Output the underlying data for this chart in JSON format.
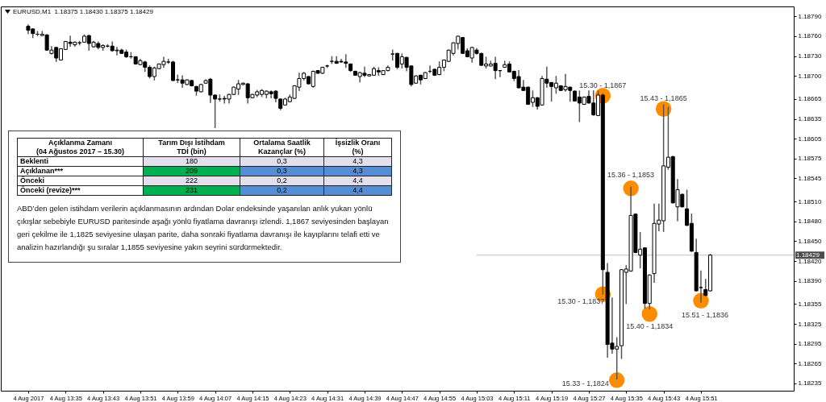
{
  "chart_data": {
    "type": "candlestick",
    "title": "EURUSD,M1  1.18375 1.18430 1.18375 1.18429",
    "x": [
      "2017-08-04T13:27",
      "2017-08-04T13:28",
      "2017-08-04T13:29",
      "2017-08-04T13:30",
      "2017-08-04T13:31",
      "2017-08-04T13:32",
      "2017-08-04T13:33",
      "2017-08-04T13:34",
      "2017-08-04T13:35",
      "2017-08-04T13:36",
      "2017-08-04T13:37",
      "2017-08-04T13:38",
      "2017-08-04T13:39",
      "2017-08-04T13:40",
      "2017-08-04T13:41",
      "2017-08-04T13:42",
      "2017-08-04T13:43",
      "2017-08-04T13:44",
      "2017-08-04T13:45",
      "2017-08-04T13:46",
      "2017-08-04T13:47",
      "2017-08-04T13:48",
      "2017-08-04T13:49",
      "2017-08-04T13:50",
      "2017-08-04T13:51",
      "2017-08-04T13:52",
      "2017-08-04T13:53",
      "2017-08-04T13:54",
      "2017-08-04T13:55",
      "2017-08-04T13:56",
      "2017-08-04T13:57",
      "2017-08-04T13:58",
      "2017-08-04T13:59",
      "2017-08-04T14:00",
      "2017-08-04T14:01",
      "2017-08-04T14:02",
      "2017-08-04T14:03",
      "2017-08-04T14:04",
      "2017-08-04T14:05",
      "2017-08-04T14:06",
      "2017-08-04T14:07",
      "2017-08-04T14:08",
      "2017-08-04T14:09",
      "2017-08-04T14:10",
      "2017-08-04T14:11",
      "2017-08-04T14:12",
      "2017-08-04T14:13",
      "2017-08-04T14:14",
      "2017-08-04T14:15",
      "2017-08-04T14:16",
      "2017-08-04T14:17",
      "2017-08-04T14:18",
      "2017-08-04T14:19",
      "2017-08-04T14:20",
      "2017-08-04T14:21",
      "2017-08-04T14:22",
      "2017-08-04T14:23",
      "2017-08-04T14:24",
      "2017-08-04T14:25",
      "2017-08-04T14:26",
      "2017-08-04T14:27",
      "2017-08-04T14:28",
      "2017-08-04T14:29",
      "2017-08-04T14:30",
      "2017-08-04T14:31",
      "2017-08-04T14:32",
      "2017-08-04T14:33",
      "2017-08-04T14:34",
      "2017-08-04T14:35",
      "2017-08-04T14:36",
      "2017-08-04T14:37",
      "2017-08-04T14:38",
      "2017-08-04T14:39",
      "2017-08-04T14:40",
      "2017-08-04T14:41",
      "2017-08-04T14:42",
      "2017-08-04T14:43",
      "2017-08-04T14:44",
      "2017-08-04T14:45",
      "2017-08-04T14:46",
      "2017-08-04T14:47",
      "2017-08-04T14:48",
      "2017-08-04T14:49",
      "2017-08-04T14:50",
      "2017-08-04T14:51",
      "2017-08-04T14:52",
      "2017-08-04T14:53",
      "2017-08-04T14:54",
      "2017-08-04T14:55",
      "2017-08-04T14:56",
      "2017-08-04T14:57",
      "2017-08-04T14:58",
      "2017-08-04T14:59",
      "2017-08-04T15:00",
      "2017-08-04T15:01",
      "2017-08-04T15:02",
      "2017-08-04T15:03",
      "2017-08-04T15:04",
      "2017-08-04T15:05",
      "2017-08-04T15:06",
      "2017-08-04T15:07",
      "2017-08-04T15:08",
      "2017-08-04T15:09",
      "2017-08-04T15:10",
      "2017-08-04T15:11",
      "2017-08-04T15:12",
      "2017-08-04T15:13",
      "2017-08-04T15:14",
      "2017-08-04T15:15",
      "2017-08-04T15:16",
      "2017-08-04T15:17",
      "2017-08-04T15:18",
      "2017-08-04T15:19",
      "2017-08-04T15:20",
      "2017-08-04T15:21",
      "2017-08-04T15:22",
      "2017-08-04T15:23",
      "2017-08-04T15:24",
      "2017-08-04T15:25",
      "2017-08-04T15:26",
      "2017-08-04T15:27",
      "2017-08-04T15:28",
      "2017-08-04T15:29",
      "2017-08-04T15:30",
      "2017-08-04T15:31",
      "2017-08-04T15:32",
      "2017-08-04T15:33",
      "2017-08-04T15:34",
      "2017-08-04T15:35",
      "2017-08-04T15:36",
      "2017-08-04T15:37",
      "2017-08-04T15:38",
      "2017-08-04T15:39",
      "2017-08-04T15:40",
      "2017-08-04T15:41",
      "2017-08-04T15:42",
      "2017-08-04T15:43",
      "2017-08-04T15:44",
      "2017-08-04T15:45",
      "2017-08-04T15:46",
      "2017-08-04T15:47",
      "2017-08-04T15:48",
      "2017-08-04T15:49",
      "2017-08-04T15:50",
      "2017-08-04T15:51",
      "2017-08-04T15:52",
      "2017-08-04T15:53"
    ],
    "ohlc": [
      [
        1.18775,
        1.18777,
        1.18764,
        1.18769
      ],
      [
        1.18771,
        1.18771,
        1.18758,
        1.18764
      ],
      [
        1.18763,
        1.18767,
        1.18761,
        1.18763
      ],
      [
        1.18761,
        1.18767,
        1.18761,
        1.18763
      ],
      [
        1.18762,
        1.18762,
        1.18739,
        1.18739
      ],
      [
        1.18734,
        1.18744,
        1.18733,
        1.18739
      ],
      [
        1.18743,
        1.18743,
        1.18722,
        1.18727
      ],
      [
        1.18724,
        1.18741,
        1.18724,
        1.18741
      ],
      [
        1.1874,
        1.18752,
        1.1874,
        1.18752
      ],
      [
        1.18751,
        1.1876,
        1.18745,
        1.18749
      ],
      [
        1.18747,
        1.18751,
        1.18745,
        1.18751
      ],
      [
        1.1875,
        1.18752,
        1.18747,
        1.1875
      ],
      [
        1.18751,
        1.18762,
        1.18751,
        1.1876
      ],
      [
        1.18761,
        1.18761,
        1.18739,
        1.18749
      ],
      [
        1.18744,
        1.18752,
        1.18744,
        1.18751
      ],
      [
        1.18749,
        1.18751,
        1.18741,
        1.18743
      ],
      [
        1.18743,
        1.18747,
        1.18739,
        1.18746
      ],
      [
        1.18745,
        1.18747,
        1.18744,
        1.18745
      ],
      [
        1.18745,
        1.18751,
        1.18738,
        1.18738
      ],
      [
        1.18738,
        1.18743,
        1.18732,
        1.18739
      ],
      [
        1.18739,
        1.1874,
        1.18734,
        1.18734
      ],
      [
        1.18736,
        1.18739,
        1.18728,
        1.18729
      ],
      [
        1.18729,
        1.18735,
        1.18727,
        1.18729
      ],
      [
        1.18729,
        1.18729,
        1.18718,
        1.18718
      ],
      [
        1.18717,
        1.18725,
        1.18717,
        1.18723
      ],
      [
        1.18721,
        1.18722,
        1.18707,
        1.18713
      ],
      [
        1.18713,
        1.18715,
        1.18697,
        1.18699
      ],
      [
        1.18699,
        1.18713,
        1.18694,
        1.18712
      ],
      [
        1.18711,
        1.18718,
        1.18711,
        1.18718
      ],
      [
        1.18717,
        1.18728,
        1.18713,
        1.18722
      ],
      [
        1.18721,
        1.18725,
        1.18719,
        1.18721
      ],
      [
        1.18721,
        1.18722,
        1.18693,
        1.18693
      ],
      [
        1.18694,
        1.18701,
        1.1869,
        1.18694
      ],
      [
        1.18694,
        1.187,
        1.18683,
        1.18689
      ],
      [
        1.18687,
        1.18694,
        1.18687,
        1.18694
      ],
      [
        1.18693,
        1.18693,
        1.18685,
        1.18685
      ],
      [
        1.18684,
        1.18684,
        1.18671,
        1.18677
      ],
      [
        1.18676,
        1.18687,
        1.18676,
        1.18687
      ],
      [
        1.18689,
        1.18694,
        1.18689,
        1.18693
      ],
      [
        1.18695,
        1.18696,
        1.1866,
        1.18671
      ],
      [
        1.18671,
        1.18671,
        1.18622,
        1.18665
      ],
      [
        1.18665,
        1.18671,
        1.18662,
        1.18665
      ],
      [
        1.18666,
        1.18669,
        1.18659,
        1.18665
      ],
      [
        1.18665,
        1.18672,
        1.18659,
        1.18672
      ],
      [
        1.18672,
        1.18683,
        1.18672,
        1.18683
      ],
      [
        1.1868,
        1.18693,
        1.18672,
        1.18688
      ],
      [
        1.18687,
        1.18689,
        1.18687,
        1.18689
      ],
      [
        1.18688,
        1.18688,
        1.18659,
        1.18667
      ],
      [
        1.18667,
        1.18672,
        1.18667,
        1.18672
      ],
      [
        1.18671,
        1.18678,
        1.18669,
        1.18676
      ],
      [
        1.18672,
        1.18679,
        1.18669,
        1.18678
      ],
      [
        1.18672,
        1.18677,
        1.18667,
        1.18677
      ],
      [
        1.18676,
        1.18677,
        1.18667,
        1.18673
      ],
      [
        1.18677,
        1.18677,
        1.18661,
        1.18666
      ],
      [
        1.18665,
        1.18665,
        1.18649,
        1.18651
      ],
      [
        1.18656,
        1.18666,
        1.18656,
        1.18665
      ],
      [
        1.18661,
        1.18671,
        1.18661,
        1.18668
      ],
      [
        1.18666,
        1.18685,
        1.18666,
        1.18685
      ],
      [
        1.18683,
        1.18704,
        1.18678,
        1.18696
      ],
      [
        1.18696,
        1.18705,
        1.18694,
        1.18704
      ],
      [
        1.18699,
        1.18699,
        1.18688,
        1.18688
      ],
      [
        1.18684,
        1.18707,
        1.18683,
        1.18707
      ],
      [
        1.18708,
        1.18708,
        1.18704,
        1.18704
      ],
      [
        1.18704,
        1.18713,
        1.18704,
        1.18713
      ],
      [
        1.18715,
        1.18716,
        1.18713,
        1.18715
      ],
      [
        1.18722,
        1.18729,
        1.18719,
        1.18722
      ],
      [
        1.18722,
        1.18729,
        1.18719,
        1.18719
      ],
      [
        1.18722,
        1.18725,
        1.18721,
        1.18721
      ],
      [
        1.18721,
        1.18732,
        1.18713,
        1.18719
      ],
      [
        1.18718,
        1.18718,
        1.18707,
        1.18708
      ],
      [
        1.18707,
        1.18707,
        1.18701,
        1.18701
      ],
      [
        1.18699,
        1.18705,
        1.18691,
        1.18705
      ],
      [
        1.18704,
        1.18713,
        1.18699,
        1.18701
      ],
      [
        1.187,
        1.18702,
        1.187,
        1.18702
      ],
      [
        1.18701,
        1.18713,
        1.18701,
        1.18711
      ],
      [
        1.18708,
        1.18712,
        1.18701,
        1.18706
      ],
      [
        1.18702,
        1.18708,
        1.18702,
        1.18708
      ],
      [
        1.18708,
        1.18715,
        1.18708,
        1.18713
      ],
      [
        1.18733,
        1.18739,
        1.18724,
        1.18733
      ],
      [
        1.18734,
        1.18734,
        1.18711,
        1.18713
      ],
      [
        1.18718,
        1.18733,
        1.18712,
        1.18729
      ],
      [
        1.18728,
        1.18728,
        1.18708,
        1.18713
      ],
      [
        1.18715,
        1.18715,
        1.18685,
        1.18687
      ],
      [
        1.18689,
        1.187,
        1.18689,
        1.187
      ],
      [
        1.18701,
        1.18701,
        1.18688,
        1.18694
      ],
      [
        1.18696,
        1.18705,
        1.18696,
        1.18705
      ],
      [
        1.18707,
        1.18715,
        1.18705,
        1.18707
      ],
      [
        1.1871,
        1.1871,
        1.18701,
        1.18701
      ],
      [
        1.18702,
        1.18721,
        1.18702,
        1.18713
      ],
      [
        1.18713,
        1.18724,
        1.18708,
        1.18724
      ],
      [
        1.18722,
        1.18739,
        1.18722,
        1.18739
      ],
      [
        1.18734,
        1.1875,
        1.18732,
        1.1875
      ],
      [
        1.18749,
        1.1876,
        1.18741,
        1.1876
      ],
      [
        1.18758,
        1.18758,
        1.18734,
        1.18734
      ],
      [
        1.18738,
        1.18741,
        1.18729,
        1.18729
      ],
      [
        1.18727,
        1.18743,
        1.18721,
        1.18743
      ],
      [
        1.18739,
        1.18741,
        1.18733,
        1.18734
      ],
      [
        1.18734,
        1.18734,
        1.18716,
        1.18716
      ],
      [
        1.18715,
        1.18728,
        1.18712,
        1.18718
      ],
      [
        1.18715,
        1.18722,
        1.18715,
        1.18718
      ],
      [
        1.18719,
        1.18728,
        1.18696,
        1.18708
      ],
      [
        1.18708,
        1.18708,
        1.18699,
        1.18708
      ],
      [
        1.18713,
        1.18722,
        1.18713,
        1.18717
      ],
      [
        1.18718,
        1.18721,
        1.18706,
        1.18706
      ],
      [
        1.18707,
        1.18707,
        1.18693,
        1.18696
      ],
      [
        1.18699,
        1.18708,
        1.18682,
        1.18682
      ],
      [
        1.18683,
        1.18693,
        1.18678,
        1.18678
      ],
      [
        1.18683,
        1.18683,
        1.18657,
        1.18657
      ],
      [
        1.1866,
        1.18677,
        1.18654,
        1.18667
      ],
      [
        1.18667,
        1.18667,
        1.1865,
        1.18654
      ],
      [
        1.18656,
        1.18699,
        1.18656,
        1.18696
      ],
      [
        1.18695,
        1.18713,
        1.18683,
        1.18689
      ],
      [
        1.1869,
        1.1869,
        1.18662,
        1.18684
      ],
      [
        1.18682,
        1.18699,
        1.18674,
        1.18689
      ],
      [
        1.18685,
        1.18685,
        1.18678,
        1.18678
      ],
      [
        1.18679,
        1.18702,
        1.18677,
        1.18684
      ],
      [
        1.18683,
        1.18683,
        1.18662,
        1.18678
      ],
      [
        1.18677,
        1.18677,
        1.18662,
        1.18662
      ],
      [
        1.18668,
        1.18677,
        1.18631,
        1.18659
      ],
      [
        1.18657,
        1.18668,
        1.18657,
        1.18668
      ],
      [
        1.18669,
        1.18677,
        1.18659,
        1.18659
      ],
      [
        1.18659,
        1.18677,
        1.18641,
        1.18641
      ],
      [
        1.1864,
        1.18677,
        1.1864,
        1.18671
      ],
      [
        1.18671,
        1.18673,
        1.1837,
        1.18407
      ],
      [
        1.18403,
        1.18416,
        1.18275,
        1.18294
      ],
      [
        1.18296,
        1.18364,
        1.18281,
        1.18287
      ],
      [
        1.18287,
        1.18304,
        1.18242,
        1.18291
      ],
      [
        1.18292,
        1.18407,
        1.18273,
        1.18407
      ],
      [
        1.18403,
        1.18413,
        1.18356,
        1.18408
      ],
      [
        1.18405,
        1.18532,
        1.18405,
        1.18489
      ],
      [
        1.18491,
        1.18491,
        1.18433,
        1.18433
      ],
      [
        1.18429,
        1.18463,
        1.1841,
        1.18438
      ],
      [
        1.1844,
        1.1844,
        1.18349,
        1.18356
      ],
      [
        1.18356,
        1.18399,
        1.18348,
        1.18399
      ],
      [
        1.18401,
        1.18506,
        1.18388,
        1.18477
      ],
      [
        1.18476,
        1.18506,
        1.18466,
        1.18482
      ],
      [
        1.18481,
        1.18656,
        1.18465,
        1.18564
      ],
      [
        1.18562,
        1.18652,
        1.18559,
        1.18577
      ],
      [
        1.18578,
        1.18578,
        1.18508,
        1.18508
      ],
      [
        1.18502,
        1.18543,
        1.18481,
        1.18528
      ],
      [
        1.18521,
        1.18521,
        1.18502,
        1.18502
      ],
      [
        1.18499,
        1.18527,
        1.18474,
        1.18474
      ],
      [
        1.18477,
        1.18491,
        1.18435,
        1.18435
      ],
      [
        1.18433,
        1.18453,
        1.18375,
        1.18375
      ],
      [
        1.1838,
        1.18405,
        1.18358,
        1.1838
      ],
      [
        1.18377,
        1.18392,
        1.18368,
        1.18368
      ],
      [
        1.18375,
        1.1843,
        1.18375,
        1.18429
      ]
    ],
    "series": [
      {
        "type": "scatter",
        "color": "#ff8c00",
        "x": [
          "2017-08-04T15:30",
          "2017-08-04T15:30",
          "2017-08-04T15:33",
          "2017-08-04T15:36",
          "2017-08-04T15:40",
          "2017-08-04T15:43",
          "2017-08-04T15:51"
        ],
        "values": [
          1.1867,
          1.1837,
          1.1824,
          1.1853,
          1.1834,
          1.1865,
          1.1836
        ]
      }
    ],
    "marker": "circle",
    "xlim": [
      "2017-08-04T13:22",
      "2017-08-04T16:10"
    ],
    "xticks": [
      {
        "value": "2017-08-04T13:27",
        "label": "4 Aug 2017"
      },
      {
        "value": "2017-08-04T13:35",
        "label": "4 Aug 13:35"
      },
      {
        "value": "2017-08-04T13:43",
        "label": "4 Aug 13:43"
      },
      {
        "value": "2017-08-04T13:51",
        "label": "4 Aug 13:51"
      },
      {
        "value": "2017-08-04T13:59",
        "label": "4 Aug 13:59"
      },
      {
        "value": "2017-08-04T14:07",
        "label": "4 Aug 14:07"
      },
      {
        "value": "2017-08-04T14:15",
        "label": "4 Aug 14:15"
      },
      {
        "value": "2017-08-04T14:23",
        "label": "4 Aug 14:23"
      },
      {
        "value": "2017-08-04T14:31",
        "label": "4 Aug 14:31"
      },
      {
        "value": "2017-08-04T14:39",
        "label": "4 Aug 14:39"
      },
      {
        "value": "2017-08-04T14:47",
        "label": "4 Aug 14:47"
      },
      {
        "value": "2017-08-04T14:55",
        "label": "4 Aug 14:55"
      },
      {
        "value": "2017-08-04T15:03",
        "label": "4 Aug 15:03"
      },
      {
        "value": "2017-08-04T15:11",
        "label": "4 Aug 15:11"
      },
      {
        "value": "2017-08-04T15:19",
        "label": "4 Aug 15:19"
      },
      {
        "value": "2017-08-04T15:27",
        "label": "4 Aug 15:27"
      },
      {
        "value": "2017-08-04T15:35",
        "label": "4 Aug 15:35"
      },
      {
        "value": "2017-08-04T15:43",
        "label": "4 Aug 15:43"
      },
      {
        "value": "2017-08-04T15:51",
        "label": "4 Aug 15:51"
      }
    ],
    "ylim": [
      1.18224,
      1.18805
    ],
    "yticks": [
      {
        "value": 1.1879,
        "label": "1.18790"
      },
      {
        "value": 1.1876,
        "label": "1.18760"
      },
      {
        "value": 1.1873,
        "label": "1.18730"
      },
      {
        "value": 1.187,
        "label": "1.18700"
      },
      1.18665,
      1.18635,
      1.18605,
      1.18575,
      1.18545,
      {
        "value": 1.1851,
        "label": "1.18510"
      },
      {
        "value": 1.1848,
        "label": "1.18480"
      },
      {
        "value": 1.1845,
        "label": "1.18450"
      },
      {
        "value": 1.1842,
        "label": "1.18420"
      },
      {
        "value": 1.1839,
        "label": "1.18390"
      },
      1.18355,
      1.18325,
      1.18295,
      1.18265,
      1.18235
    ],
    "ref_lines": [
      {
        "axis": "y",
        "value": 1.18429,
        "label": "1.18429",
        "color": "#c0c0c0"
      }
    ],
    "annotations": [
      "Açıklanma Zamanı\n(04 Ağustos 2017 – 15.30)",
      "Tarım Dışı İstihdam\nTDİ (bin)",
      "Ortalama Saatlik\nKazançlar (%)",
      "İşsizlik Oranı\n(%)",
      "Beklenti",
      "180",
      "0,3",
      "4,3",
      "Açıklanan***",
      "209",
      "0,3",
      "4,3",
      "Önceki",
      "222",
      "0,2",
      "4,4",
      "Önceki (revize)***",
      "231",
      "0,2",
      "4,4",
      "ABD’den gelen istihdam verilerin açıklanmasının ardından Dolar endeksinde yaşanılan anlık yukarı yönlü çıkışlar sebebiyle EURUSD paritesinde aşağı yönlü fiyatlama davranışı izlendi. 1,1867 seviyesinden başlayan geri çekilme ile 1,1825 seviyesine ulaşan parite, daha sonraki fiyatlama davranışı ile kayıplarını telafi etti ve analizin hazırlandığı şu sıralar 1,1855 seviyesine yakın seyrini sürdürmektedir.",
      {
        "text": "15.30 - 1,1867",
        "x": "2017-08-04T15:30",
        "y": 1.1867
      },
      {
        "text": "15.30 - 1,1837",
        "x": "2017-08-04T15:30",
        "y": 1.1837
      },
      {
        "text": "15.33 - 1,1824",
        "x": "2017-08-04T15:33",
        "y": 1.1824
      },
      {
        "text": "15.36 - 1,1853",
        "x": "2017-08-04T15:36",
        "y": 1.1853
      },
      {
        "text": "15.40 - 1,1834",
        "x": "2017-08-04T15:40",
        "y": 1.1834
      },
      {
        "text": "15.43 - 1,1865",
        "x": "2017-08-04T15:43",
        "y": 1.1865
      },
      {
        "text": "15.51 - 1,1836",
        "x": "2017-08-04T15:51",
        "y": 1.1836
      }
    ]
  }
}
